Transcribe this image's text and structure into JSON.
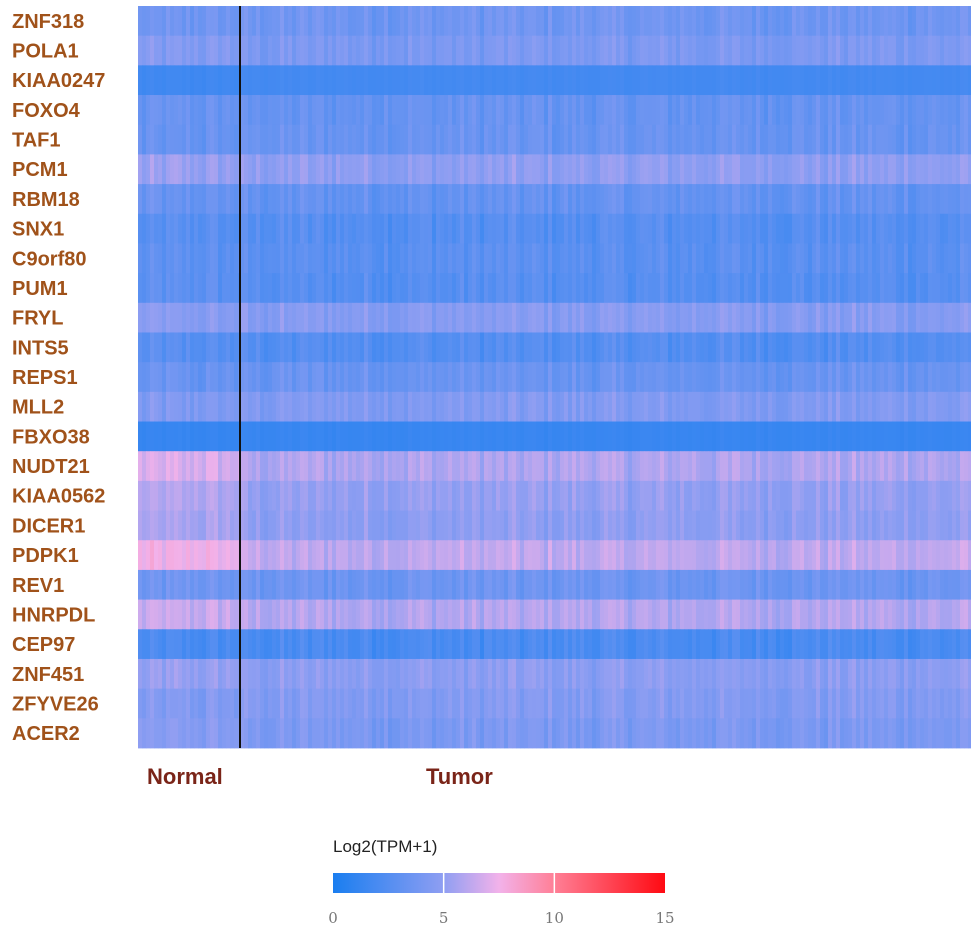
{
  "chart_data": {
    "type": "heatmap",
    "genes": [
      "ZNF318",
      "POLA1",
      "KIAA0247",
      "FOXO4",
      "TAF1",
      "PCM1",
      "RBM18",
      "SNX1",
      "C9orf80",
      "PUM1",
      "FRYL",
      "INTS5",
      "REPS1",
      "MLL2",
      "FBXO38",
      "NUDT21",
      "KIAA0562",
      "DICER1",
      "PDPK1",
      "REV1",
      "HNRPDL",
      "CEP97",
      "ZNF451",
      "ZFYVE26",
      "ACER2"
    ],
    "mean_log2_tpm_normal": [
      3.6,
      4.4,
      1.6,
      3.3,
      3.3,
      5.2,
      3.3,
      2.6,
      2.9,
      2.8,
      4.6,
      2.6,
      3.3,
      4.3,
      1.2,
      6.8,
      5.8,
      5.6,
      7.4,
      3.6,
      6.4,
      2.0,
      5.1,
      4.4,
      4.6
    ],
    "mean_log2_tpm_tumor": [
      3.7,
      4.2,
      1.8,
      3.3,
      3.4,
      4.9,
      3.2,
      2.6,
      2.8,
      2.6,
      4.6,
      2.5,
      3.4,
      4.4,
      1.3,
      5.8,
      5.1,
      4.9,
      6.2,
      3.6,
      5.9,
      2.1,
      4.8,
      4.5,
      4.2
    ],
    "groups": [
      {
        "label": "Normal",
        "samples": 60
      },
      {
        "label": "Tumor",
        "samples": 500
      }
    ],
    "colorbar": {
      "title": "Log2(TPM+1)",
      "ticks": [
        0,
        5,
        10,
        15
      ],
      "range": [
        0,
        15
      ],
      "stops": [
        {
          "value": 0,
          "color": "#1a7ef0"
        },
        {
          "value": 5,
          "color": "#8f9ef2"
        },
        {
          "value": 7.5,
          "color": "#f2b2ea"
        },
        {
          "value": 10,
          "color": "#ff7f96"
        },
        {
          "value": 15,
          "color": "#ff0a12"
        }
      ]
    },
    "legend_position": "bottom-center",
    "grid": false
  }
}
